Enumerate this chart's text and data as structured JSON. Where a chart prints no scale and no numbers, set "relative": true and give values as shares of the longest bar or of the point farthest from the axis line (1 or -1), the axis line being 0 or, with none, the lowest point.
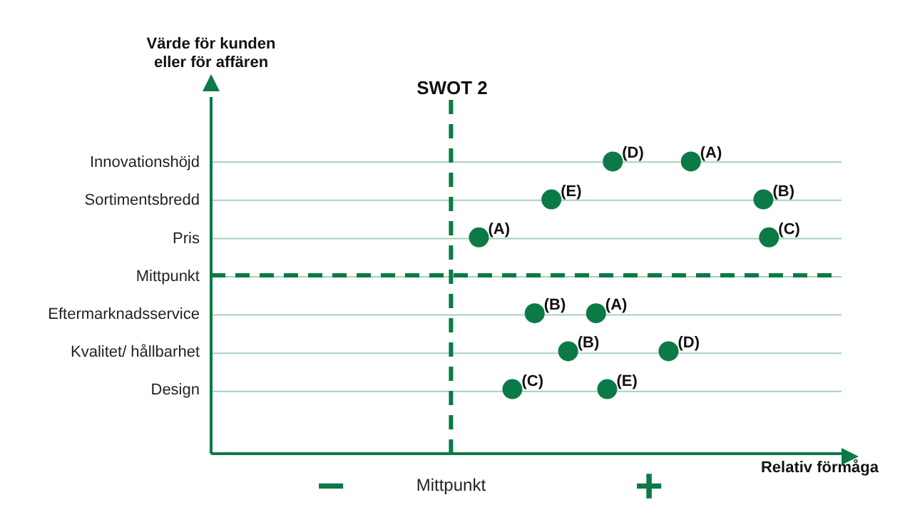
{
  "chart_data": {
    "type": "scatter",
    "orientation": "horizontal",
    "relative": true,
    "title": "SWOT 2",
    "xlabel": "Relativ förmåga",
    "ylabel": "Värde för kunden\neller för affären",
    "categories": [
      "Innovationshöjd",
      "Sortimentsbredd",
      "Pris",
      "Mittpunkt",
      "Eftermarknadsservice",
      "Kvalitet/ hållbarhet",
      "Design"
    ],
    "series": [
      {
        "name": "(A)",
        "color": "#0b7a46",
        "values": [
          0.86,
          null,
          0.48,
          null,
          0.69,
          null,
          null
        ]
      },
      {
        "name": "(B)",
        "color": "#0b7a46",
        "values": [
          null,
          0.99,
          null,
          null,
          0.58,
          0.64,
          null
        ]
      },
      {
        "name": "(C)",
        "color": "#0b7a46",
        "values": [
          null,
          null,
          1.0,
          null,
          null,
          null,
          0.54
        ]
      },
      {
        "name": "(D)",
        "color": "#0b7a46",
        "values": [
          0.72,
          null,
          null,
          null,
          null,
          0.82,
          null
        ]
      },
      {
        "name": "(E)",
        "color": "#0b7a46",
        "values": [
          null,
          0.61,
          null,
          null,
          null,
          null,
          0.71
        ]
      }
    ],
    "ref_lines": [
      {
        "axis": "x",
        "value": 0.43,
        "label": "Mittpunkt",
        "color": "#0b7a46",
        "line_style": "dashed"
      },
      {
        "axis": "y",
        "value": "Mittpunkt",
        "color": "#0b7a46",
        "line_style": "dashed"
      }
    ],
    "annotations": [
      "−",
      "+"
    ],
    "grid": "y",
    "marker": "circle",
    "legend": false
  }
}
